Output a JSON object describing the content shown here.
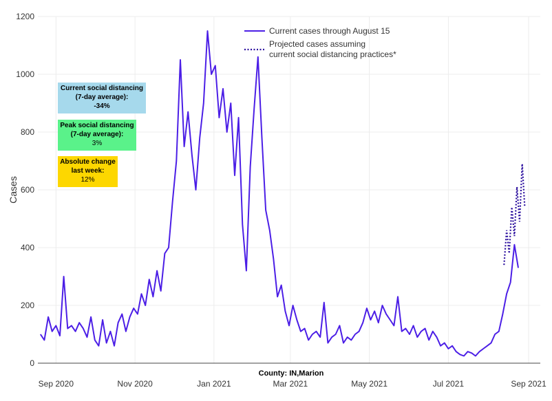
{
  "chart_data": {
    "type": "line",
    "title": "",
    "xlabel": "",
    "ylabel": "Cases",
    "ylim": [
      0,
      1200
    ],
    "yticks": [
      0,
      200,
      400,
      600,
      800,
      1000,
      1200
    ],
    "xticks": [
      {
        "date": "2020-09-01",
        "label": "Sep 2020"
      },
      {
        "date": "2020-11-01",
        "label": "Nov 2020"
      },
      {
        "date": "2021-01-01",
        "label": "Jan 2021"
      },
      {
        "date": "2021-03-01",
        "label": "Mar 2021"
      },
      {
        "date": "2021-05-01",
        "label": "May 2021"
      },
      {
        "date": "2021-07-01",
        "label": "Jul 2021"
      },
      {
        "date": "2021-09-01",
        "label": "Sep 2021"
      }
    ],
    "xrange": [
      "2020-08-18",
      "2021-09-10"
    ],
    "annotation": "County: IN,Marion",
    "series": [
      {
        "name": "Current cases through August 15",
        "style": "solid",
        "color": "#4b1ee6",
        "start": "2020-08-20",
        "step_days": 3,
        "values": [
          100,
          80,
          160,
          110,
          130,
          95,
          300,
          120,
          130,
          110,
          140,
          120,
          90,
          160,
          80,
          60,
          150,
          70,
          110,
          60,
          140,
          170,
          110,
          160,
          190,
          170,
          240,
          200,
          290,
          230,
          320,
          250,
          380,
          400,
          560,
          700,
          1050,
          750,
          870,
          720,
          600,
          780,
          900,
          1150,
          1000,
          1030,
          850,
          950,
          800,
          900,
          650,
          850,
          480,
          320,
          680,
          880,
          1060,
          780,
          530,
          460,
          360,
          230,
          270,
          180,
          130,
          200,
          150,
          110,
          120,
          80,
          100,
          110,
          90,
          210,
          70,
          90,
          100,
          130,
          70,
          90,
          80,
          100,
          110,
          140,
          190,
          150,
          180,
          140,
          200,
          170,
          150,
          130,
          230,
          110,
          120,
          100,
          130,
          90,
          110,
          120,
          80,
          110,
          90,
          60,
          70,
          50,
          60,
          40,
          30,
          25,
          40,
          35,
          25,
          40,
          50,
          60,
          70,
          100,
          110,
          170,
          240,
          280,
          410,
          330
        ]
      },
      {
        "name": "Projected cases assuming current social distancing practices*",
        "style": "dotted",
        "color": "#2b0f9e",
        "start": "2021-08-13",
        "step_days": 2,
        "values": [
          340,
          460,
          380,
          540,
          440,
          610,
          490,
          690,
          540
        ]
      }
    ]
  },
  "legend": {
    "current": "Current cases through August 15",
    "projected_line1": "Projected cases assuming",
    "projected_line2": "current social distancing practices*"
  },
  "boxes": {
    "current_sd": {
      "title1": "Current social distancing",
      "title2": "(7-day average):",
      "value": "-34%",
      "color": "#a6d9ec"
    },
    "peak_sd": {
      "title1": "Peak social distancing",
      "title2": "(7-day average):",
      "value": "3%",
      "color": "#5af28a"
    },
    "abs_change": {
      "title1": "Absolute change",
      "title2": "last week:",
      "value": "12%",
      "color": "#fdd700"
    }
  }
}
